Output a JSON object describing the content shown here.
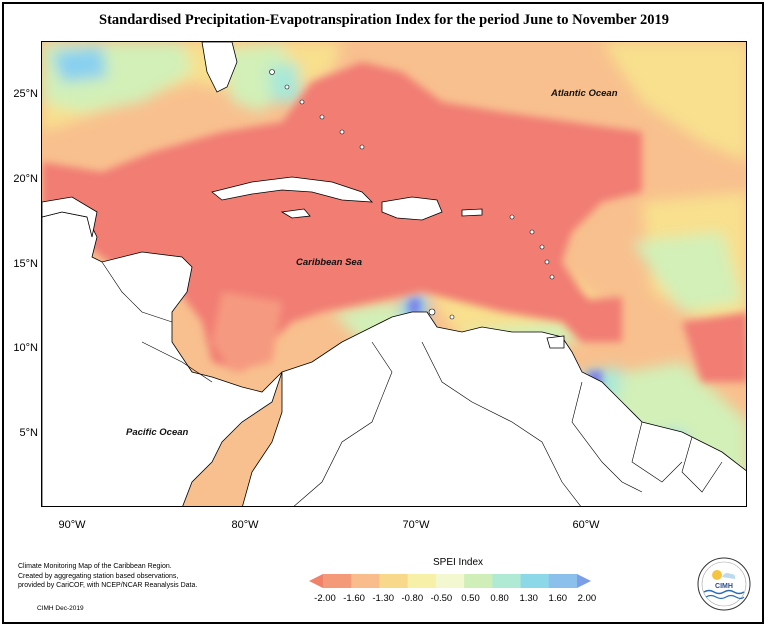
{
  "title": "Standardised Precipitation-Evapotranspiration Index for the period June to November 2019",
  "latitude_labels": [
    "25°N",
    "20°N",
    "15°N",
    "10°N",
    "5°N"
  ],
  "longitude_labels": [
    "90°W",
    "80°W",
    "70°W",
    "60°W"
  ],
  "regions": {
    "atlantic": "Atlantic Ocean",
    "caribbean": "Caribbean Sea",
    "pacific": "Pacific Ocean"
  },
  "credits": {
    "line1": "Climate Monitoring Map of the Caribbean Region.",
    "line2": "Created by aggregating station based observations,",
    "line3": "provided by CariCOF, with NCEP/NCAR Reanalysis Data.",
    "footer": "CIMH Dec-2019"
  },
  "legend": {
    "title": "SPEI Index",
    "ticks": [
      "-2.00",
      "-1.60",
      "-1.30",
      "-0.80",
      "-0.50",
      "0.50",
      "0.80",
      "1.30",
      "1.60",
      "2.00"
    ],
    "colors": [
      "#f0826a",
      "#f59a78",
      "#f8bd8a",
      "#f8d88a",
      "#f6f0a8",
      "#f4f8d0",
      "#cfeeb8",
      "#b0ead4",
      "#8cd8e8",
      "#8cc0ec",
      "#7a9ee8"
    ]
  },
  "logo": {
    "text": "CIMH"
  },
  "colors": {
    "dry_extreme": "#f17d73",
    "dry_severe": "#f59a80",
    "dry_moderate": "#f8c08e",
    "dry_mild": "#f8e08e",
    "near_normal": "#f4f4c0",
    "wet_mild": "#d2f0b8",
    "wet_moderate": "#a8e8d8",
    "wet_severe": "#88d0f0",
    "wet_extreme": "#7a7ee8",
    "land": "#ffffff"
  }
}
